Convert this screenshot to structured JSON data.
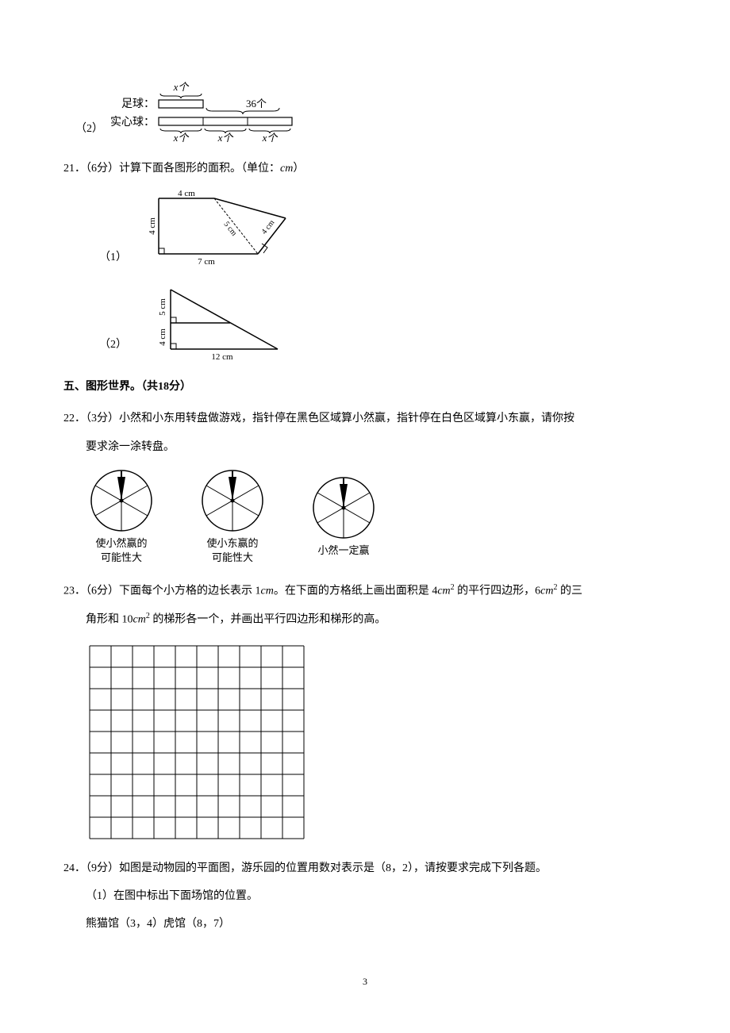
{
  "q20_diagram": {
    "sub_num": "（2）",
    "label_football": "足球：",
    "label_solid": "实心球：",
    "x_label": "x个",
    "count_label": "36个"
  },
  "q21": {
    "prefix": "21．（6分）计算下面各图形的面积。（单位：",
    "unit": "cm",
    "suffix": "）",
    "fig1_sub": "（1）",
    "fig2_sub": "（2）",
    "fig1": {
      "top": "4 cm",
      "left": "4 cm",
      "bottom": "7 cm",
      "diag": "5 cm",
      "right_diag": "4 cm"
    },
    "fig2": {
      "left_upper": "5 cm",
      "left_lower": "4 cm",
      "bottom": "12 cm"
    }
  },
  "section5": "五、图形世界。（共18分）",
  "q22": {
    "text1": "22．（3分）小然和小东用转盘做游戏，指针停在黑色区域算小然赢，指针停在白色区域算小东赢，请你按",
    "text2": "要求涂一涂转盘。",
    "label1_line1": "使小然赢的",
    "label1_line2": "可能性大",
    "label2_line1": "使小东赢的",
    "label2_line2": "可能性大",
    "label3": "小然一定赢"
  },
  "q23": {
    "text1_a": "23．（6分）下面每个小方格的边长表示 1",
    "text1_b": "cm",
    "text1_c": "。在下面的方格纸上画出面积是 4",
    "text1_d": "cm",
    "text1_e": " 的平行四边形，6",
    "text1_f": "cm",
    "text1_g": " 的三",
    "text2_a": "角形和 10",
    "text2_b": "cm",
    "text2_c": " 的梯形各一个，并画出平行四边形和梯形的高。",
    "grid": {
      "cols": 10,
      "rows": 9,
      "cell": 27
    }
  },
  "q24": {
    "text": "24．（9分）如图是动物园的平面图，游乐园的位置用数对表示是（8，2），请按要求完成下列各题。",
    "sub1": "（1）在图中标出下面场馆的位置。",
    "sub2": "熊猫馆（3，4）虎馆（8，7）"
  },
  "page_num": "3"
}
